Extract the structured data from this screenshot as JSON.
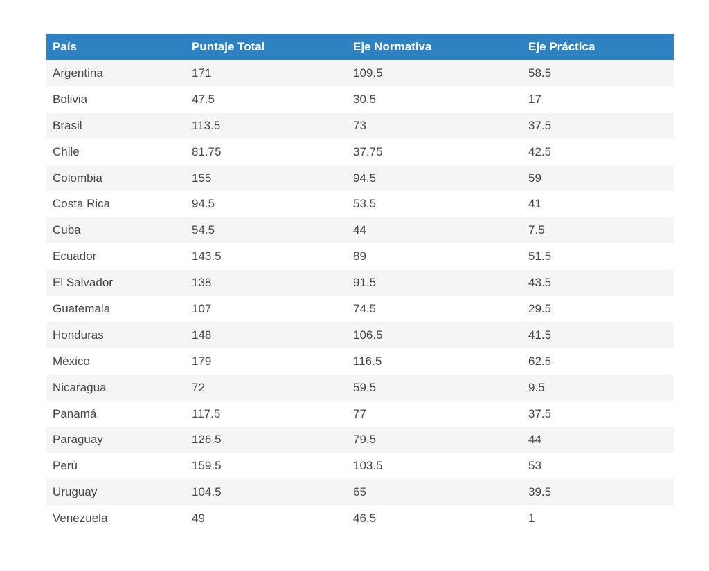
{
  "table": {
    "headers": [
      "País",
      "Puntaje Total",
      "Eje Normativa",
      "Eje Práctica"
    ],
    "rows": [
      [
        "Argentina",
        "171",
        "109.5",
        "58.5"
      ],
      [
        "Bolivia",
        "47.5",
        "30.5",
        "17"
      ],
      [
        "Brasil",
        "113.5",
        "73",
        "37.5"
      ],
      [
        "Chile",
        "81.75",
        "37.75",
        "42.5"
      ],
      [
        "Colombia",
        "155",
        "94.5",
        "59"
      ],
      [
        "Costa Rica",
        "94.5",
        "53.5",
        "41"
      ],
      [
        "Cuba",
        "54.5",
        "44",
        "7.5"
      ],
      [
        "Ecuador",
        "143.5",
        "89",
        "51.5"
      ],
      [
        "El Salvador",
        "138",
        "91.5",
        "43.5"
      ],
      [
        "Guatemala",
        "107",
        "74.5",
        "29.5"
      ],
      [
        "Honduras",
        "148",
        "106.5",
        "41.5"
      ],
      [
        "México",
        "179",
        "116.5",
        "62.5"
      ],
      [
        "Nicaragua",
        "72",
        "59.5",
        "9.5"
      ],
      [
        "Panamá",
        "117.5",
        "77",
        "37.5"
      ],
      [
        "Paraguay",
        "126.5",
        "79.5",
        "44"
      ],
      [
        "Perú",
        "159.5",
        "103.5",
        "53"
      ],
      [
        "Uruguay",
        "104.5",
        "65",
        "39.5"
      ],
      [
        "Venezuela",
        "49",
        "46.5",
        "1"
      ]
    ]
  },
  "colors": {
    "header_background": "#2f82c2",
    "header_text": "#ffffff",
    "stripe_row": "#f5f5f5",
    "body_text": "#474747"
  }
}
